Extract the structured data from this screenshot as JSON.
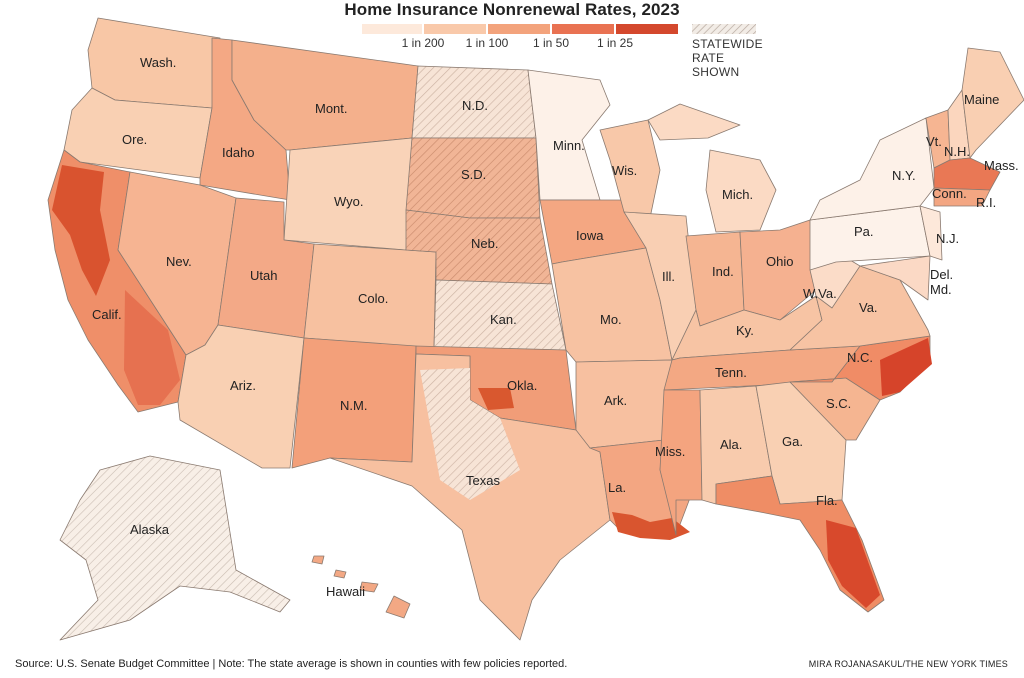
{
  "title": "Home Insurance Nonrenewal Rates, 2023",
  "legend": {
    "colors": [
      "#fde9db",
      "#f9c9aa",
      "#f3a37c",
      "#e97252",
      "#d4482d"
    ],
    "hatch_color": "#b8aaa0",
    "ticks": [
      "1 in 200",
      "1 in 100",
      "1 in 50",
      "1 in 25"
    ],
    "statewide_line1": "STATEWIDE",
    "statewide_line2": "RATE SHOWN"
  },
  "states": {
    "wa": "Wash.",
    "or": "Ore.",
    "ca": "Calif.",
    "id": "Idaho",
    "nv": "Nev.",
    "mt": "Mont.",
    "wy": "Wyo.",
    "ut": "Utah",
    "az": "Ariz.",
    "co": "Colo.",
    "nm": "N.M.",
    "nd": "N.D.",
    "sd": "S.D.",
    "ne": "Neb.",
    "ks": "Kan.",
    "ok": "Okla.",
    "tx": "Texas",
    "mn": "Minn.",
    "ia": "Iowa",
    "mo": "Mo.",
    "ar": "Ark.",
    "la": "La.",
    "wi": "Wis.",
    "il": "Ill.",
    "mi": "Mich.",
    "in": "Ind.",
    "oh": "Ohio",
    "ky": "Ky.",
    "tn": "Tenn.",
    "ms": "Miss.",
    "al": "Ala.",
    "ga": "Ga.",
    "fl": "Fla.",
    "sc": "S.C.",
    "nc": "N.C.",
    "va": "Va.",
    "wv": "W.Va.",
    "pa": "Pa.",
    "ny": "N.Y.",
    "nj": "N.J.",
    "de": "Del.",
    "md": "Md.",
    "vt": "Vt.",
    "nh": "N.H.",
    "me": "Maine",
    "ma": "Mass.",
    "ct": "Conn.",
    "ri": "R.I.",
    "ak": "Alaska",
    "hi": "Hawaii"
  },
  "footer": {
    "source": "Source: U.S. Senate Budget Committee | Note: The state average is shown in counties with few policies reported.",
    "credit": "MIRA ROJANASAKUL/THE NEW YORK TIMES"
  }
}
